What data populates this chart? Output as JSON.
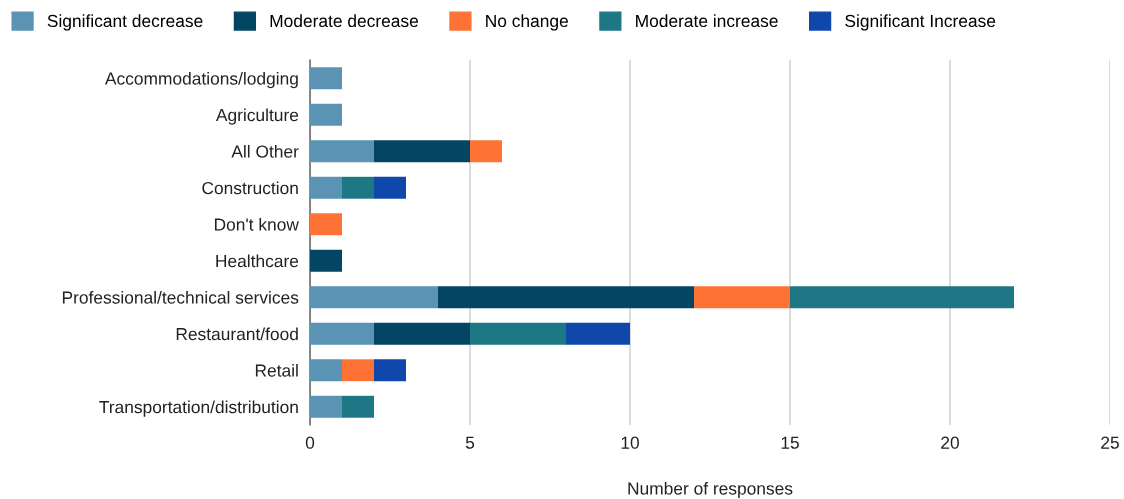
{
  "chart_data": {
    "type": "bar",
    "orientation": "horizontal",
    "stacked": true,
    "xlabel": "Number of responses",
    "categories": [
      "Accommodations/lodging",
      "Agriculture",
      "All Other",
      "Construction",
      "Don't know",
      "Healthcare",
      "Professional/technical services",
      "Restaurant/food",
      "Retail",
      "Transportation/distribution"
    ],
    "series": [
      {
        "name": "Significant decrease",
        "color": "#5a93b4",
        "values": [
          1,
          1,
          2,
          1,
          0,
          0,
          4,
          2,
          1,
          1
        ]
      },
      {
        "name": "Moderate decrease",
        "color": "#034562",
        "values": [
          0,
          0,
          3,
          0,
          0,
          1,
          8,
          3,
          0,
          0
        ]
      },
      {
        "name": "No change",
        "color": "#ff7235",
        "values": [
          0,
          0,
          1,
          0,
          1,
          0,
          3,
          0,
          1,
          0
        ]
      },
      {
        "name": "Moderate increase",
        "color": "#1d7785",
        "values": [
          0,
          0,
          0,
          1,
          0,
          0,
          7,
          3,
          0,
          1
        ]
      },
      {
        "name": "Significant Increase",
        "color": "#0f47ab",
        "values": [
          0,
          0,
          0,
          1,
          0,
          0,
          0,
          2,
          1,
          0
        ]
      }
    ],
    "xlim": [
      0,
      25
    ],
    "xticks": [
      0,
      5,
      10,
      15,
      20,
      25
    ],
    "grid": "x",
    "legend": "top left"
  }
}
